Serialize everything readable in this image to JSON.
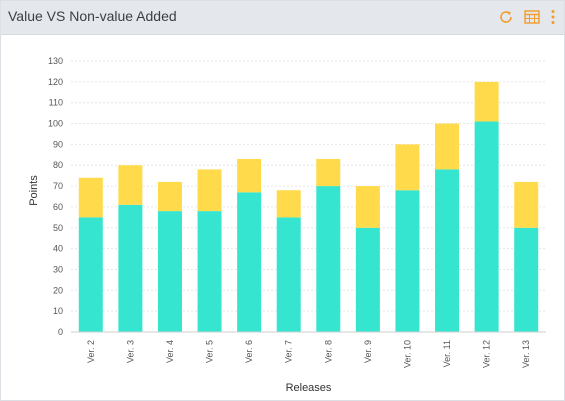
{
  "header": {
    "title": "Value VS Non-value Added",
    "icons": [
      "refresh-icon",
      "table-icon",
      "more-vertical-icon"
    ],
    "accent_color": "#f39c2b"
  },
  "chart_data": {
    "type": "bar",
    "stacked": true,
    "categories": [
      "Ver. 2",
      "Ver. 3",
      "Ver. 4",
      "Ver. 5",
      "Ver. 6",
      "Ver. 7",
      "Ver. 8",
      "Ver. 9",
      "Ver. 10",
      "Ver. 11",
      "Ver. 12",
      "Ver. 13"
    ],
    "series": [
      {
        "color": "#36e5d0",
        "values": [
          55,
          61,
          58,
          58,
          67,
          55,
          70,
          50,
          68,
          78,
          101,
          50
        ]
      },
      {
        "color": "#ffda4a",
        "values": [
          19,
          19,
          14,
          20,
          16,
          13,
          13,
          20,
          22,
          22,
          19,
          22
        ]
      }
    ],
    "xlabel": "Releases",
    "ylabel": "Points",
    "ylim": [
      0,
      130
    ],
    "yticks": [
      0,
      10,
      20,
      30,
      40,
      50,
      60,
      70,
      80,
      90,
      100,
      110,
      120,
      130
    ],
    "grid": true,
    "legend": "none"
  }
}
